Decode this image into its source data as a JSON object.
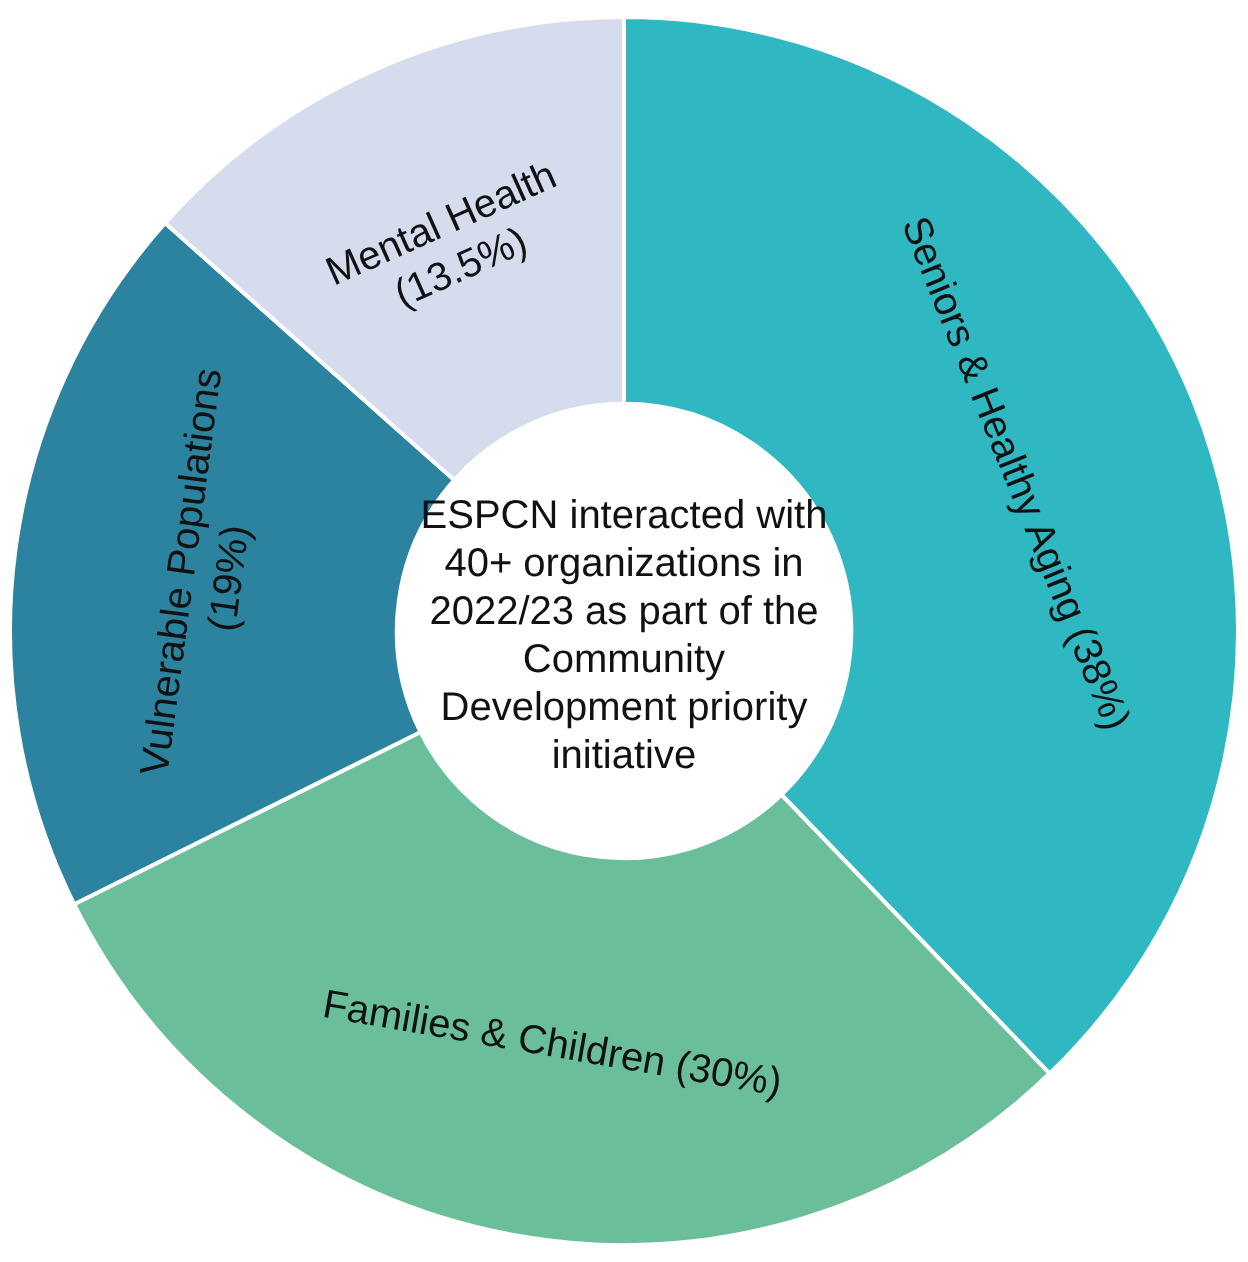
{
  "chart_data": {
    "type": "donut",
    "categories": [
      "Seniors & Healthy Aging",
      "Families & Children",
      "Vulnerable Populations",
      "Mental Health"
    ],
    "values": [
      38,
      30,
      19,
      13.5
    ],
    "value_labels": [
      "(38%)",
      "(30%)",
      "(19%)",
      "(13.5%)"
    ],
    "colors": [
      "#2fb8c2",
      "#6abf9a",
      "#2b839f",
      "#d4dcee"
    ],
    "legend": false,
    "annotations": [
      "ESPCN interacted with 40+ organizations in 2022/23 as part of the Community Development priority initiative"
    ]
  }
}
